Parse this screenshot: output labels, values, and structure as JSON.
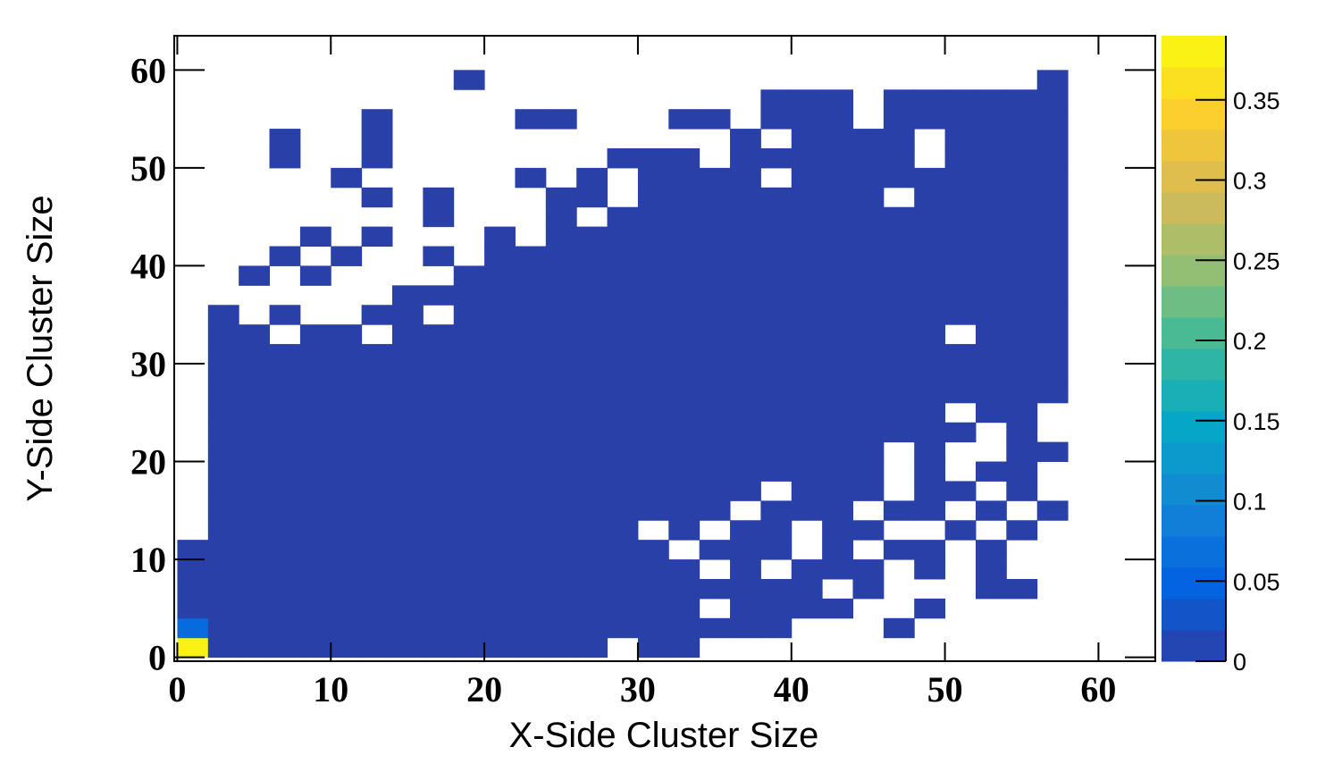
{
  "chart_data": {
    "type": "heatmap",
    "x_label": "X-Side Cluster Size",
    "y_label": "Y-Side Cluster Size",
    "xlim": [
      -0.2,
      63.7
    ],
    "ylim": [
      -0.4,
      63.5
    ],
    "zlim": [
      0,
      0.39
    ],
    "xticks": [
      0,
      10,
      20,
      30,
      40,
      50,
      60
    ],
    "yticks": [
      0,
      10,
      20,
      30,
      40,
      50,
      60
    ],
    "zticks": [
      0,
      0.05,
      0.1,
      0.15,
      0.2,
      0.25,
      0.3,
      0.35
    ],
    "colorscale": [
      "#2b3fa6",
      "#0363e1",
      "#1485d4",
      "#06a7c6",
      "#38b99e",
      "#92bf73",
      "#d9ba56",
      "#fcce2e",
      "#f9fb0e"
    ],
    "xbins": [
      0,
      2,
      4,
      6,
      8,
      10,
      12,
      14,
      16,
      18,
      20,
      22,
      24,
      26,
      28,
      30,
      32,
      34,
      36,
      38,
      40,
      42,
      44,
      46,
      48,
      50,
      52,
      54,
      56,
      58
    ],
    "ybins": [
      0,
      2,
      4,
      6,
      8,
      10,
      12,
      14,
      16,
      18,
      20,
      22,
      24,
      26,
      28,
      30,
      32,
      34,
      36,
      38,
      40,
      42,
      44,
      46,
      48,
      50,
      52,
      54,
      56,
      58,
      60
    ],
    "z": [
      [
        0.38,
        0.002,
        0.002,
        0.002,
        0.002,
        0.002,
        0.002,
        0.002,
        0.002,
        0.002,
        0.002,
        0.002,
        0.002,
        0.002,
        0,
        0.002,
        0.002,
        0,
        0,
        0,
        0,
        0,
        0,
        0,
        0,
        0,
        0,
        0,
        0
      ],
      [
        0.06,
        0.002,
        0.002,
        0.002,
        0.002,
        0.002,
        0.002,
        0.002,
        0.002,
        0.002,
        0.002,
        0.002,
        0.002,
        0.002,
        0.002,
        0.002,
        0.002,
        0.002,
        0.002,
        0.002,
        0,
        0,
        0,
        0.002,
        0,
        0,
        0,
        0,
        0
      ],
      [
        0.002,
        0.002,
        0.002,
        0.002,
        0.002,
        0.002,
        0.002,
        0.002,
        0.002,
        0.002,
        0.002,
        0.002,
        0.002,
        0.002,
        0.002,
        0.002,
        0.002,
        0,
        0.002,
        0.002,
        0.002,
        0.002,
        0,
        0,
        0.002,
        0,
        0,
        0,
        0
      ],
      [
        0.002,
        0.002,
        0.002,
        0.002,
        0.002,
        0.002,
        0.002,
        0.002,
        0.002,
        0.002,
        0.002,
        0.002,
        0.002,
        0.002,
        0.002,
        0.002,
        0.002,
        0.002,
        0.002,
        0.002,
        0.002,
        0,
        0.002,
        0,
        0,
        0,
        0.002,
        0.002,
        0
      ],
      [
        0.002,
        0.002,
        0.002,
        0.002,
        0.002,
        0.002,
        0.002,
        0.002,
        0.002,
        0.002,
        0.002,
        0.002,
        0.002,
        0.002,
        0.002,
        0.002,
        0.002,
        0,
        0.002,
        0,
        0.002,
        0.002,
        0.002,
        0,
        0.002,
        0,
        0.002,
        0,
        0
      ],
      [
        0.002,
        0.002,
        0.002,
        0.002,
        0.002,
        0.002,
        0.002,
        0.002,
        0.002,
        0.002,
        0.002,
        0.002,
        0.002,
        0.002,
        0.002,
        0.002,
        0,
        0.002,
        0.002,
        0.002,
        0,
        0.002,
        0,
        0.002,
        0.002,
        0,
        0.002,
        0,
        0
      ],
      [
        0,
        0.002,
        0.002,
        0.002,
        0.002,
        0.002,
        0.002,
        0.002,
        0.002,
        0.002,
        0.002,
        0.002,
        0.002,
        0.002,
        0.002,
        0,
        0.002,
        0,
        0.002,
        0.002,
        0,
        0.002,
        0.002,
        0,
        0,
        0.002,
        0,
        0.002,
        0
      ],
      [
        0,
        0.002,
        0.002,
        0.002,
        0.002,
        0.002,
        0.002,
        0.002,
        0.002,
        0.002,
        0.002,
        0.002,
        0.002,
        0.002,
        0.002,
        0.002,
        0.002,
        0.002,
        0,
        0.002,
        0.002,
        0.002,
        0,
        0.002,
        0.002,
        0,
        0.002,
        0,
        0.002
      ],
      [
        0,
        0.002,
        0.002,
        0.002,
        0.002,
        0.002,
        0.002,
        0.002,
        0.002,
        0.002,
        0.002,
        0.002,
        0.002,
        0.002,
        0.002,
        0.002,
        0.002,
        0.002,
        0.002,
        0,
        0.002,
        0.002,
        0.002,
        0,
        0.002,
        0.002,
        0,
        0.002,
        0
      ],
      [
        0,
        0.002,
        0.002,
        0.002,
        0.002,
        0.002,
        0.002,
        0.002,
        0.002,
        0.002,
        0.002,
        0.002,
        0.002,
        0.002,
        0.002,
        0.002,
        0.002,
        0.002,
        0.002,
        0.002,
        0.002,
        0.002,
        0.002,
        0,
        0.002,
        0,
        0.002,
        0.002,
        0
      ],
      [
        0,
        0.002,
        0.002,
        0.002,
        0.002,
        0.002,
        0.002,
        0.002,
        0.002,
        0.002,
        0.002,
        0.002,
        0.002,
        0.002,
        0.002,
        0.002,
        0.002,
        0.002,
        0.002,
        0.002,
        0.002,
        0.002,
        0.002,
        0,
        0.002,
        0,
        0,
        0.002,
        0.002
      ],
      [
        0,
        0.002,
        0.002,
        0.002,
        0.002,
        0.002,
        0.002,
        0.002,
        0.002,
        0.002,
        0.002,
        0.002,
        0.002,
        0.002,
        0.002,
        0.002,
        0.002,
        0.002,
        0.002,
        0.002,
        0.002,
        0.002,
        0.002,
        0.002,
        0.002,
        0.002,
        0,
        0.002,
        0
      ],
      [
        0,
        0.002,
        0.002,
        0.002,
        0.002,
        0.002,
        0.002,
        0.002,
        0.002,
        0.002,
        0.002,
        0.002,
        0.002,
        0.002,
        0.002,
        0.002,
        0.002,
        0.002,
        0.002,
        0.002,
        0.002,
        0.002,
        0.002,
        0.002,
        0.002,
        0,
        0.002,
        0.002,
        0
      ],
      [
        0,
        0.002,
        0.002,
        0.002,
        0.002,
        0.002,
        0.002,
        0.002,
        0.002,
        0.002,
        0.002,
        0.002,
        0.002,
        0.002,
        0.002,
        0.002,
        0.002,
        0.002,
        0.002,
        0.002,
        0.002,
        0.002,
        0.002,
        0.002,
        0.002,
        0.002,
        0.002,
        0.002,
        0.002
      ],
      [
        0,
        0.002,
        0.002,
        0.002,
        0.002,
        0.002,
        0.002,
        0.002,
        0.002,
        0.002,
        0.002,
        0.002,
        0.002,
        0.002,
        0.002,
        0.002,
        0.002,
        0.002,
        0.002,
        0.002,
        0.002,
        0.002,
        0.002,
        0.002,
        0.002,
        0.002,
        0.002,
        0.002,
        0.002
      ],
      [
        0,
        0.002,
        0.002,
        0.002,
        0.002,
        0.002,
        0.002,
        0.002,
        0.002,
        0.002,
        0.002,
        0.002,
        0.002,
        0.002,
        0.002,
        0.002,
        0.002,
        0.002,
        0.002,
        0.002,
        0.002,
        0.002,
        0.002,
        0.002,
        0.002,
        0.002,
        0.002,
        0.002,
        0.002
      ],
      [
        0,
        0.002,
        0.002,
        0,
        0.002,
        0.002,
        0,
        0.002,
        0.002,
        0.002,
        0.002,
        0.002,
        0.002,
        0.002,
        0.002,
        0.002,
        0.002,
        0.002,
        0.002,
        0.002,
        0.002,
        0.002,
        0.002,
        0.002,
        0.002,
        0,
        0.002,
        0.002,
        0.002
      ],
      [
        0,
        0.002,
        0,
        0.002,
        0,
        0,
        0.002,
        0.002,
        0,
        0.002,
        0.002,
        0.002,
        0.002,
        0.002,
        0.002,
        0.002,
        0.002,
        0.002,
        0.002,
        0.002,
        0.002,
        0.002,
        0.002,
        0.002,
        0.002,
        0.002,
        0.002,
        0.002,
        0.002
      ],
      [
        0,
        0,
        0,
        0,
        0,
        0,
        0,
        0.002,
        0.002,
        0.002,
        0.002,
        0.002,
        0.002,
        0.002,
        0.002,
        0.002,
        0.002,
        0.002,
        0.002,
        0.002,
        0.002,
        0.002,
        0.002,
        0.002,
        0.002,
        0.002,
        0.002,
        0.002,
        0.002
      ],
      [
        0,
        0,
        0.002,
        0,
        0.002,
        0,
        0,
        0,
        0,
        0.002,
        0.002,
        0.002,
        0.002,
        0.002,
        0.002,
        0.002,
        0.002,
        0.002,
        0.002,
        0.002,
        0.002,
        0.002,
        0.002,
        0.002,
        0.002,
        0.002,
        0.002,
        0.002,
        0.002
      ],
      [
        0,
        0,
        0,
        0.002,
        0,
        0.002,
        0,
        0,
        0.002,
        0,
        0.002,
        0.002,
        0.002,
        0.002,
        0.002,
        0.002,
        0.002,
        0.002,
        0.002,
        0.002,
        0.002,
        0.002,
        0.002,
        0.002,
        0.002,
        0.002,
        0.002,
        0.002,
        0.002
      ],
      [
        0,
        0,
        0,
        0,
        0.002,
        0,
        0.002,
        0,
        0,
        0,
        0.002,
        0,
        0.002,
        0.002,
        0.002,
        0.002,
        0.002,
        0.002,
        0.002,
        0.002,
        0.002,
        0.002,
        0.002,
        0.002,
        0.002,
        0.002,
        0.002,
        0.002,
        0.002
      ],
      [
        0,
        0,
        0,
        0,
        0,
        0,
        0,
        0,
        0.002,
        0,
        0,
        0,
        0.002,
        0,
        0.002,
        0.002,
        0.002,
        0.002,
        0.002,
        0.002,
        0.002,
        0.002,
        0.002,
        0.002,
        0.002,
        0.002,
        0.002,
        0.002,
        0.002
      ],
      [
        0,
        0,
        0,
        0,
        0,
        0,
        0.002,
        0,
        0.002,
        0,
        0,
        0,
        0.002,
        0.002,
        0,
        0.002,
        0.002,
        0.002,
        0.002,
        0.002,
        0.002,
        0.002,
        0.002,
        0,
        0.002,
        0.002,
        0.002,
        0.002,
        0.002
      ],
      [
        0,
        0,
        0,
        0,
        0,
        0.002,
        0,
        0,
        0,
        0,
        0,
        0.002,
        0,
        0.002,
        0,
        0.002,
        0.002,
        0.002,
        0.002,
        0,
        0.002,
        0.002,
        0.002,
        0.002,
        0.002,
        0.002,
        0.002,
        0.002,
        0.002
      ],
      [
        0,
        0,
        0,
        0.002,
        0,
        0,
        0.002,
        0,
        0,
        0,
        0,
        0,
        0,
        0,
        0.002,
        0.002,
        0.002,
        0,
        0.002,
        0.002,
        0.002,
        0.002,
        0.002,
        0.002,
        0,
        0.002,
        0.002,
        0.002,
        0.002
      ],
      [
        0,
        0,
        0,
        0.002,
        0,
        0,
        0.002,
        0,
        0,
        0,
        0,
        0,
        0,
        0,
        0,
        0,
        0,
        0,
        0.002,
        0,
        0.002,
        0.002,
        0.002,
        0.002,
        0,
        0.002,
        0.002,
        0.002,
        0.002
      ],
      [
        0,
        0,
        0,
        0,
        0,
        0,
        0.002,
        0,
        0,
        0,
        0,
        0.002,
        0.002,
        0,
        0,
        0,
        0.002,
        0.002,
        0,
        0.002,
        0.002,
        0.002,
        0,
        0.002,
        0.002,
        0.002,
        0.002,
        0.002,
        0.002
      ],
      [
        0,
        0,
        0,
        0,
        0,
        0,
        0,
        0,
        0,
        0,
        0,
        0,
        0,
        0,
        0,
        0,
        0,
        0,
        0,
        0.002,
        0.002,
        0.002,
        0,
        0.002,
        0.002,
        0.002,
        0.002,
        0.002,
        0.002
      ],
      [
        0,
        0,
        0,
        0,
        0,
        0,
        0,
        0,
        0,
        0.002,
        0,
        0,
        0,
        0,
        0,
        0,
        0,
        0,
        0,
        0,
        0,
        0,
        0,
        0,
        0,
        0,
        0,
        0,
        0.002
      ]
    ]
  }
}
